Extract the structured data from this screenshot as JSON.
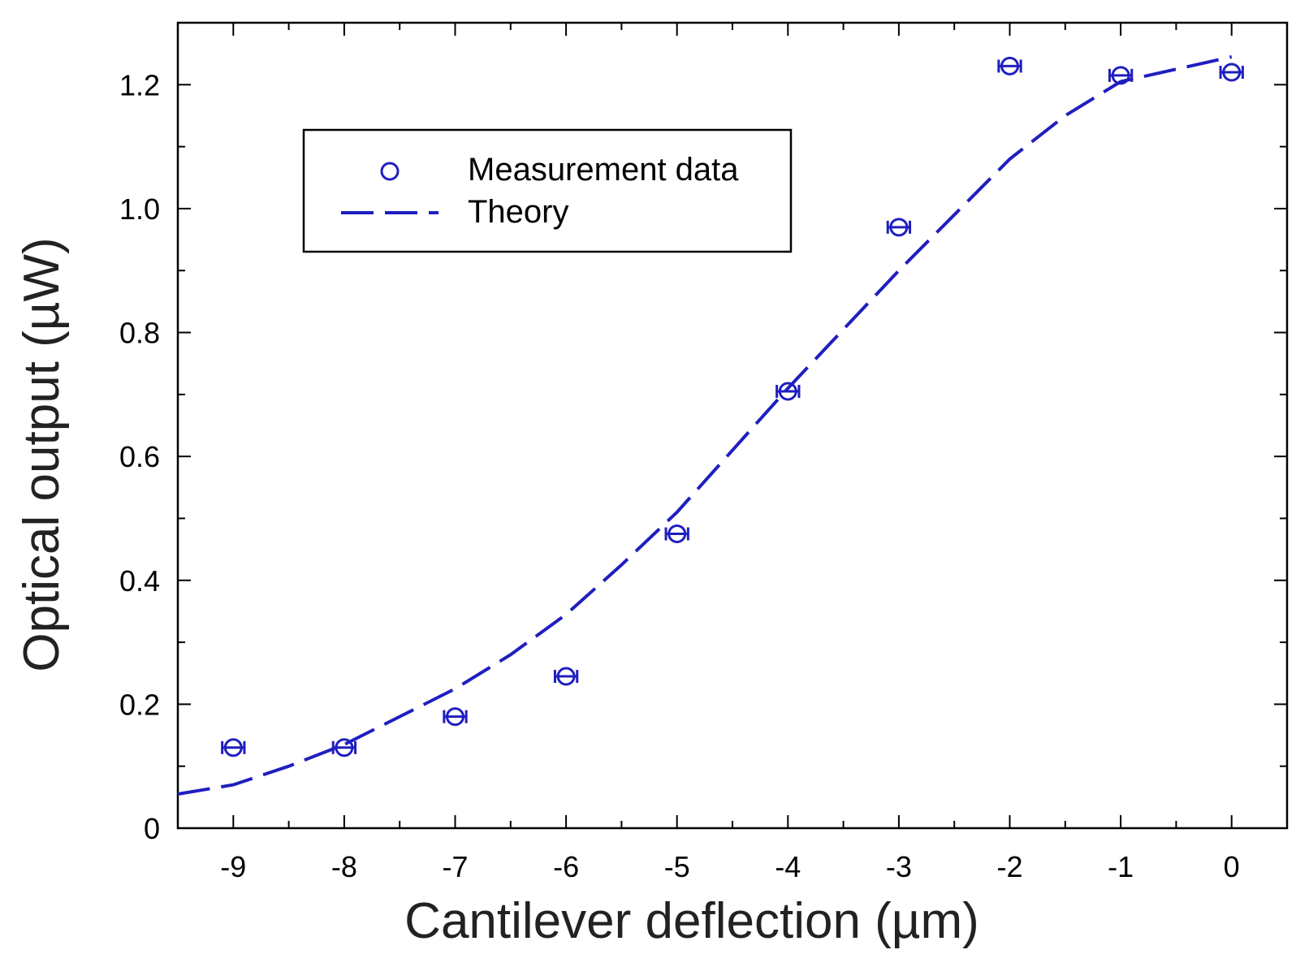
{
  "chart_data": {
    "type": "scatter",
    "title": "",
    "xlabel": "Cantilever deflection (µm)",
    "ylabel": "Optical output (µW)",
    "xlim": [
      -9.5,
      0.5
    ],
    "ylim": [
      0,
      1.3
    ],
    "x_ticks": [
      -9,
      -8,
      -7,
      -6,
      -5,
      -4,
      -3,
      -2,
      -1,
      0
    ],
    "x_tick_labels": [
      "-9",
      "-8",
      "-7",
      "-6",
      "-5",
      "-4",
      "-3",
      "-2",
      "-1",
      "0"
    ],
    "y_ticks": [
      0,
      0.2,
      0.4,
      0.6,
      0.8,
      1.0,
      1.2
    ],
    "y_tick_labels": [
      "0",
      "0.2",
      "0.4",
      "0.6",
      "0.8",
      "1.0",
      "1.2"
    ],
    "grid": false,
    "legend": {
      "position": "top-left",
      "entries": [
        "Measurement data",
        "Theory"
      ]
    },
    "series": [
      {
        "name": "Measurement data",
        "style": "open-circle",
        "color": "#1f1fbf",
        "x": [
          -9,
          -8,
          -7,
          -6,
          -5,
          -4,
          -3,
          -2,
          -1,
          0
        ],
        "y": [
          0.13,
          0.13,
          0.18,
          0.245,
          0.475,
          0.705,
          0.97,
          1.23,
          1.215,
          1.22
        ],
        "x_error": 0.1
      },
      {
        "name": "Theory",
        "style": "dashed-line",
        "color": "#1f1fbf",
        "x": [
          -9.5,
          -9,
          -8.5,
          -8,
          -7.5,
          -7,
          -6.5,
          -6,
          -5.5,
          -5,
          -4.5,
          -4,
          -3.5,
          -3,
          -2.5,
          -2,
          -1.5,
          -1,
          -0.5,
          0
        ],
        "y": [
          0.055,
          0.07,
          0.1,
          0.135,
          0.18,
          0.225,
          0.28,
          0.345,
          0.425,
          0.51,
          0.61,
          0.71,
          0.805,
          0.9,
          0.99,
          1.08,
          1.15,
          1.205,
          1.225,
          1.245
        ]
      }
    ]
  }
}
